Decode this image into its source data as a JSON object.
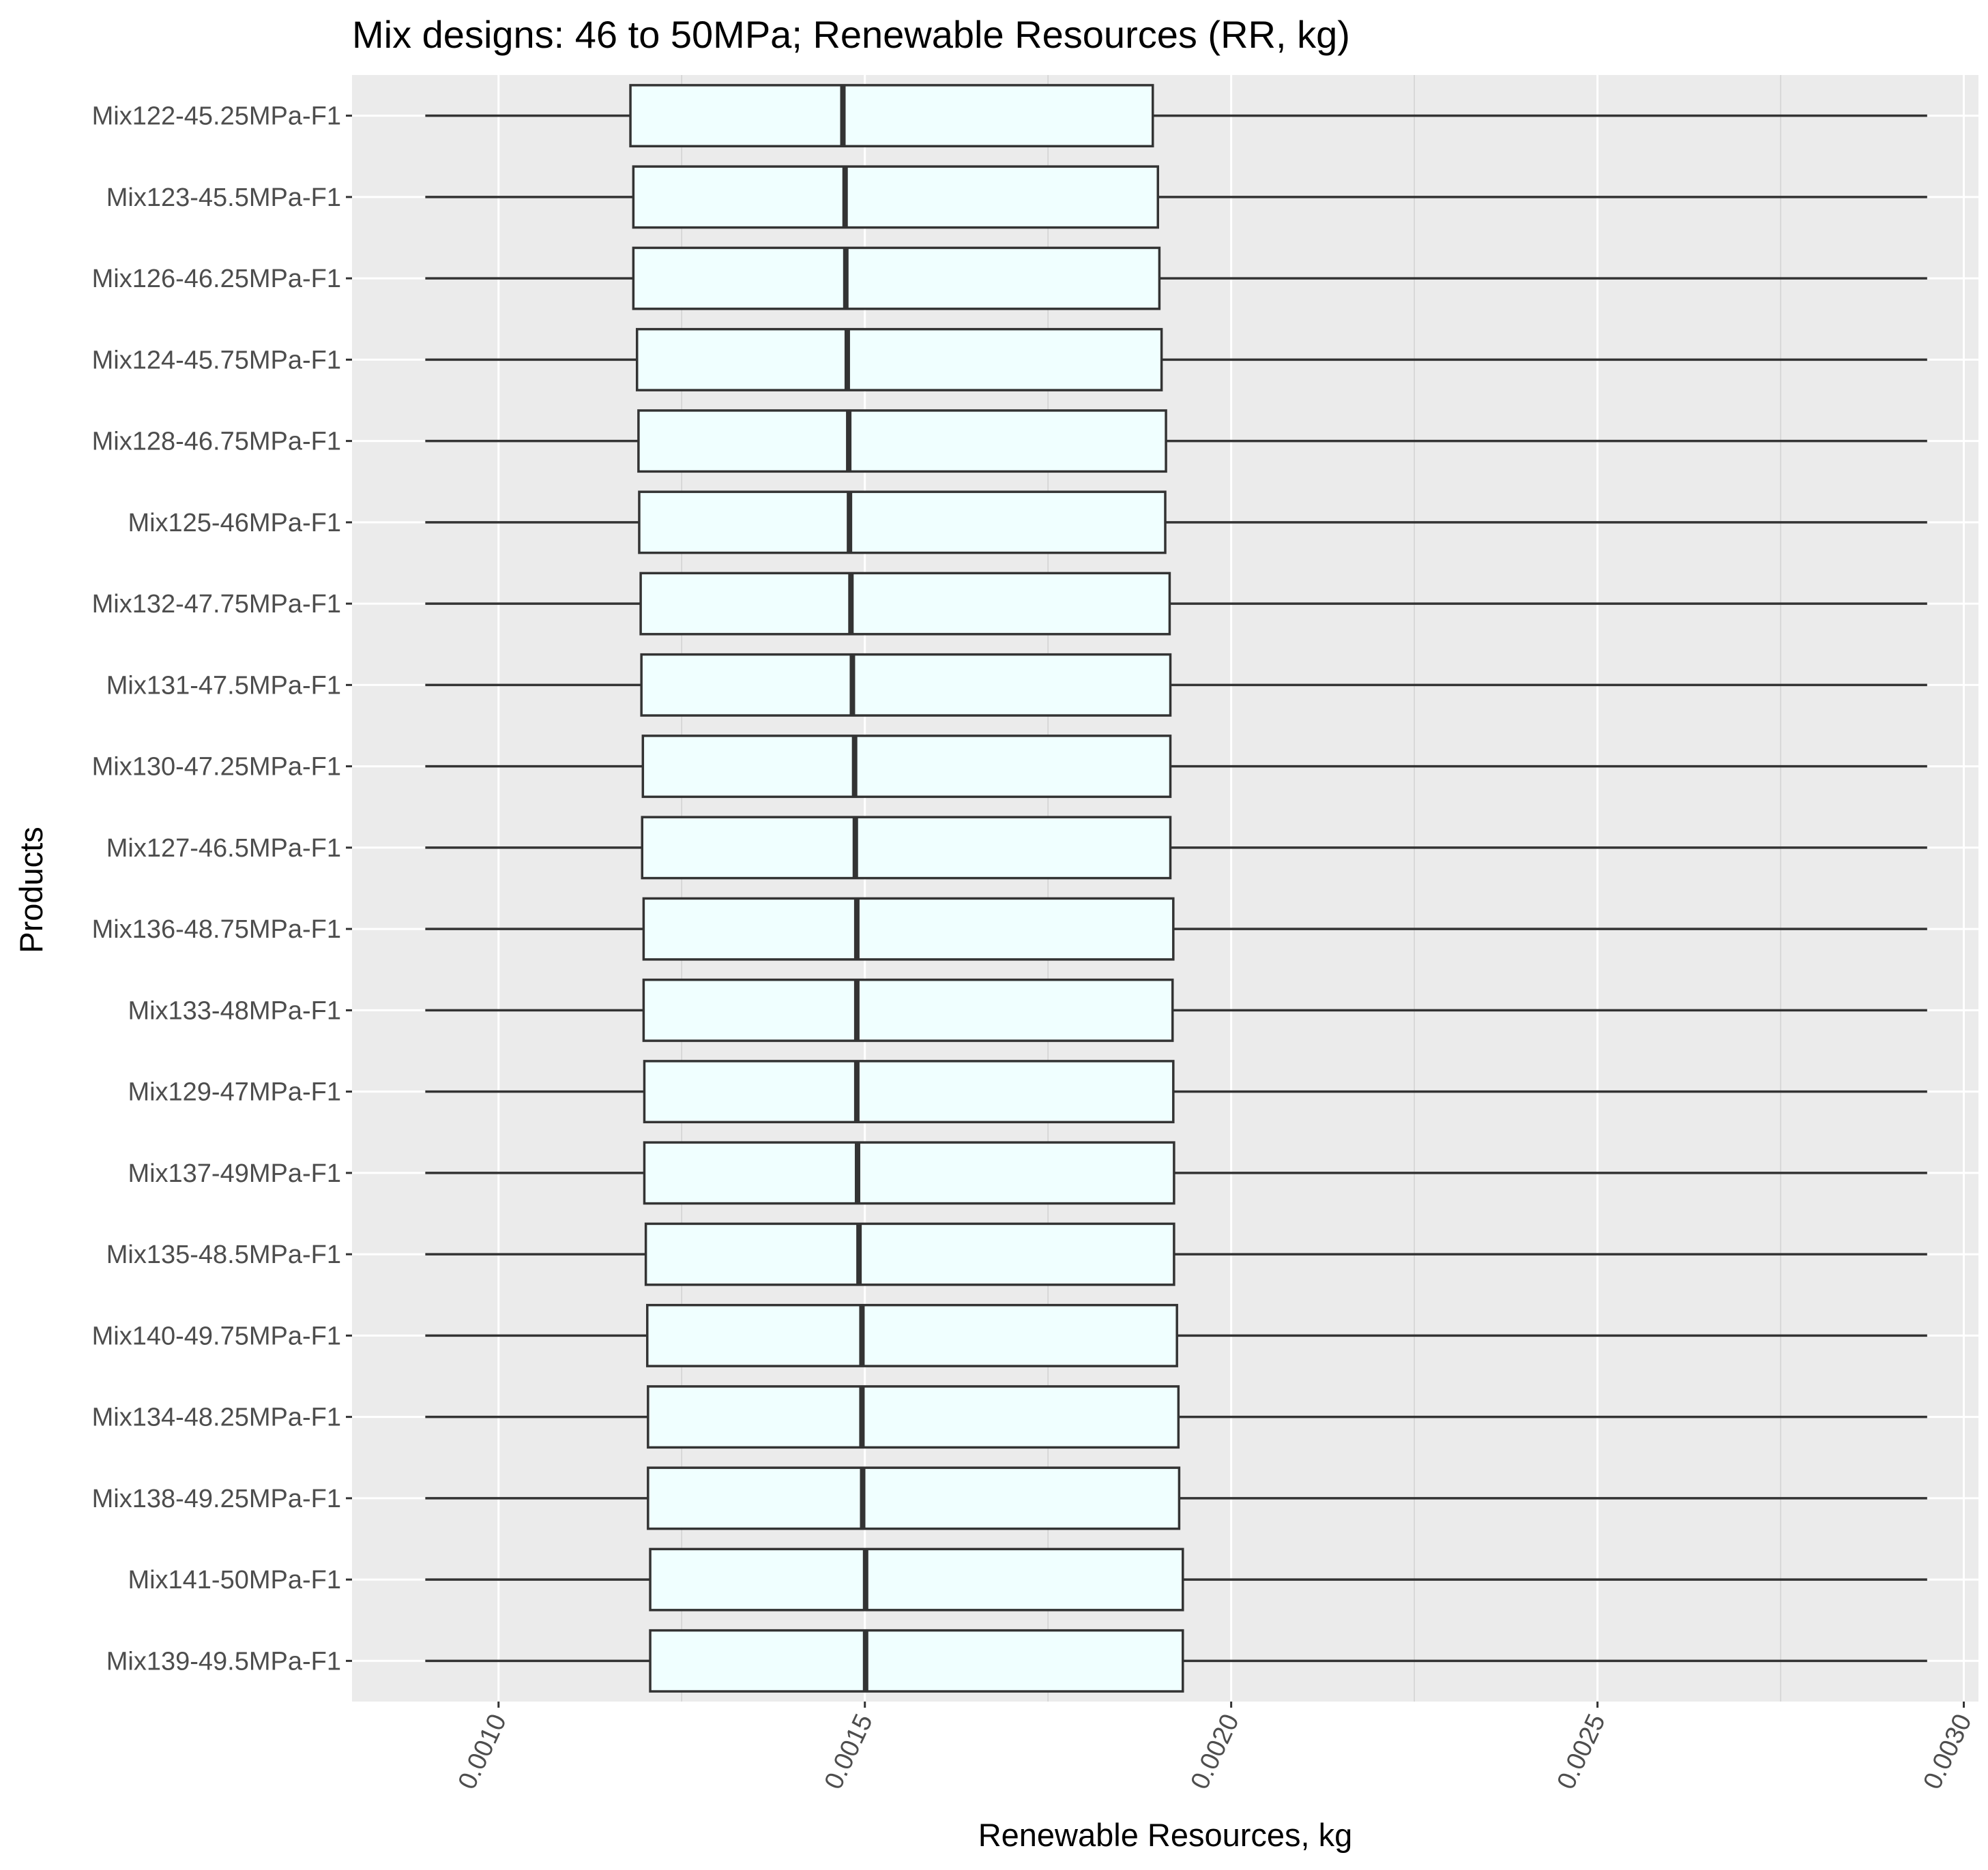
{
  "chart_data": {
    "type": "boxplot",
    "title": "Mix designs: 46 to 50MPa; Renewable Resources (RR, kg)",
    "xlabel": "Renewable Resources, kg",
    "ylabel": "Products",
    "xlim": [
      0.0008,
      0.00302
    ],
    "x_ticks": [
      "0.0010",
      "0.0015",
      "0.0020",
      "0.0025",
      "0.0030"
    ],
    "x_tick_values": [
      0.001,
      0.0015,
      0.002,
      0.0025,
      0.003
    ],
    "grid": true,
    "colors": {
      "panel": "#ebebeb",
      "grid_major": "#ffffff",
      "grid_minor": "#d2d2d2",
      "box_fill": "#f0ffff",
      "box_stroke": "#333333"
    },
    "categories": [
      "Mix122-45.25MPa-F1",
      "Mix123-45.5MPa-F1",
      "Mix126-46.25MPa-F1",
      "Mix124-45.75MPa-F1",
      "Mix128-46.75MPa-F1",
      "Mix125-46MPa-F1",
      "Mix132-47.75MPa-F1",
      "Mix131-47.5MPa-F1",
      "Mix130-47.25MPa-F1",
      "Mix127-46.5MPa-F1",
      "Mix136-48.75MPa-F1",
      "Mix133-48MPa-F1",
      "Mix129-47MPa-F1",
      "Mix137-49MPa-F1",
      "Mix135-48.5MPa-F1",
      "Mix140-49.75MPa-F1",
      "Mix134-48.25MPa-F1",
      "Mix138-49.25MPa-F1",
      "Mix141-50MPa-F1",
      "Mix139-49.5MPa-F1"
    ],
    "boxes": [
      {
        "min": 0.0009,
        "q1": 0.00118,
        "median": 0.00147,
        "q3": 0.001893,
        "max": 0.00295
      },
      {
        "min": 0.0009,
        "q1": 0.001184,
        "median": 0.001473,
        "q3": 0.0019,
        "max": 0.00295
      },
      {
        "min": 0.0009,
        "q1": 0.001184,
        "median": 0.001474,
        "q3": 0.001902,
        "max": 0.00295
      },
      {
        "min": 0.0009,
        "q1": 0.001189,
        "median": 0.001476,
        "q3": 0.001905,
        "max": 0.00295
      },
      {
        "min": 0.0009,
        "q1": 0.001191,
        "median": 0.001478,
        "q3": 0.001911,
        "max": 0.00295
      },
      {
        "min": 0.0009,
        "q1": 0.001192,
        "median": 0.001479,
        "q3": 0.00191,
        "max": 0.00295
      },
      {
        "min": 0.0009,
        "q1": 0.001194,
        "median": 0.001481,
        "q3": 0.001916,
        "max": 0.00295
      },
      {
        "min": 0.0009,
        "q1": 0.001195,
        "median": 0.001483,
        "q3": 0.001917,
        "max": 0.00295
      },
      {
        "min": 0.0009,
        "q1": 0.001197,
        "median": 0.001486,
        "q3": 0.001917,
        "max": 0.00295
      },
      {
        "min": 0.0009,
        "q1": 0.001196,
        "median": 0.001487,
        "q3": 0.001917,
        "max": 0.00295
      },
      {
        "min": 0.0009,
        "q1": 0.001198,
        "median": 0.001489,
        "q3": 0.001921,
        "max": 0.00295
      },
      {
        "min": 0.0009,
        "q1": 0.001198,
        "median": 0.001489,
        "q3": 0.00192,
        "max": 0.00295
      },
      {
        "min": 0.0009,
        "q1": 0.001199,
        "median": 0.001489,
        "q3": 0.001921,
        "max": 0.00295
      },
      {
        "min": 0.0009,
        "q1": 0.001199,
        "median": 0.00149,
        "q3": 0.001922,
        "max": 0.00295
      },
      {
        "min": 0.0009,
        "q1": 0.001201,
        "median": 0.001492,
        "q3": 0.001922,
        "max": 0.00295
      },
      {
        "min": 0.0009,
        "q1": 0.001203,
        "median": 0.001496,
        "q3": 0.001926,
        "max": 0.00295
      },
      {
        "min": 0.0009,
        "q1": 0.001204,
        "median": 0.001496,
        "q3": 0.001928,
        "max": 0.00295
      },
      {
        "min": 0.0009,
        "q1": 0.001204,
        "median": 0.001497,
        "q3": 0.001929,
        "max": 0.00295
      },
      {
        "min": 0.0009,
        "q1": 0.001207,
        "median": 0.001501,
        "q3": 0.001934,
        "max": 0.00295
      },
      {
        "min": 0.0009,
        "q1": 0.001207,
        "median": 0.001501,
        "q3": 0.001934,
        "max": 0.00295
      }
    ]
  }
}
